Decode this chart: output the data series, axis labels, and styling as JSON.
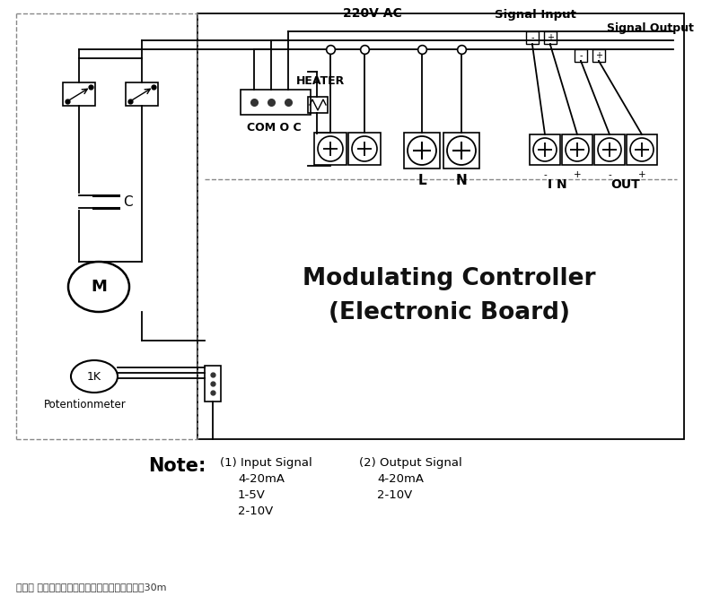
{
  "bg_color": "#ffffff",
  "line_color": "#000000",
  "note_label": "Note:",
  "note_1_title": "(1) Input Signal",
  "note_1_lines": [
    "4-20mA",
    "1-5V",
    "2-10V"
  ],
  "note_2_title": "(2) Output Signal",
  "note_2_lines": [
    "4-20mA",
    "2-10V"
  ],
  "footer_text": "说明： 信号线建议采用屏蔽电缆，且长度不大于30m",
  "label_220v": "220V AC",
  "label_heater": "HEATER",
  "label_signal_input": "Signal Input",
  "label_signal_output": "Signal Output",
  "label_com_o_c": "COM O C",
  "label_L": "L",
  "label_N": "N",
  "label_IN": "I N",
  "label_OUT": "OUT",
  "label_M": "M",
  "label_C": "C",
  "label_1K": "1K",
  "label_pot": "Potentionmeter",
  "label_controller": "Modulating Controller\n(Electronic Board)"
}
